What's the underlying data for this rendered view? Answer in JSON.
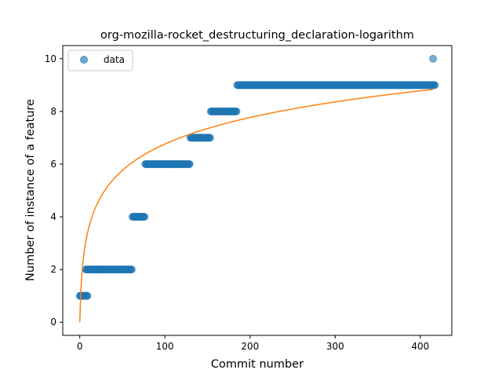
{
  "chart_data": {
    "type": "scatter",
    "title": "org-mozilla-rocket_destructuring_declaration-logarithm",
    "xlabel": "Commit number",
    "ylabel": "Number of instance of a feature",
    "xlim": [
      -20,
      437
    ],
    "ylim": [
      -0.5,
      10.5
    ],
    "xticks": [
      0,
      100,
      200,
      300,
      400
    ],
    "yticks": [
      0,
      2,
      4,
      6,
      8,
      10
    ],
    "grid": false,
    "legend": {
      "position": "top-left",
      "entries": [
        "data"
      ]
    },
    "colors": {
      "scatter": "#1f77b4",
      "fit": "#ff7f0e"
    },
    "series": [
      {
        "name": "data",
        "kind": "scatter",
        "segments": [
          {
            "x_start": 0,
            "x_end": 9,
            "y": 1
          },
          {
            "x_start": 7,
            "x_end": 61,
            "y": 2
          },
          {
            "x_start": 62,
            "x_end": 76,
            "y": 4
          },
          {
            "x_start": 77,
            "x_end": 129,
            "y": 6
          },
          {
            "x_start": 130,
            "x_end": 153,
            "y": 7
          },
          {
            "x_start": 154,
            "x_end": 184,
            "y": 8
          },
          {
            "x_start": 185,
            "x_end": 417,
            "y": 9
          }
        ],
        "points": [
          {
            "x": 415,
            "y": 10
          }
        ]
      },
      {
        "kind": "line",
        "function": "logarithmic",
        "a": 1.465,
        "b": 0,
        "x_range": [
          0,
          415
        ]
      }
    ]
  }
}
